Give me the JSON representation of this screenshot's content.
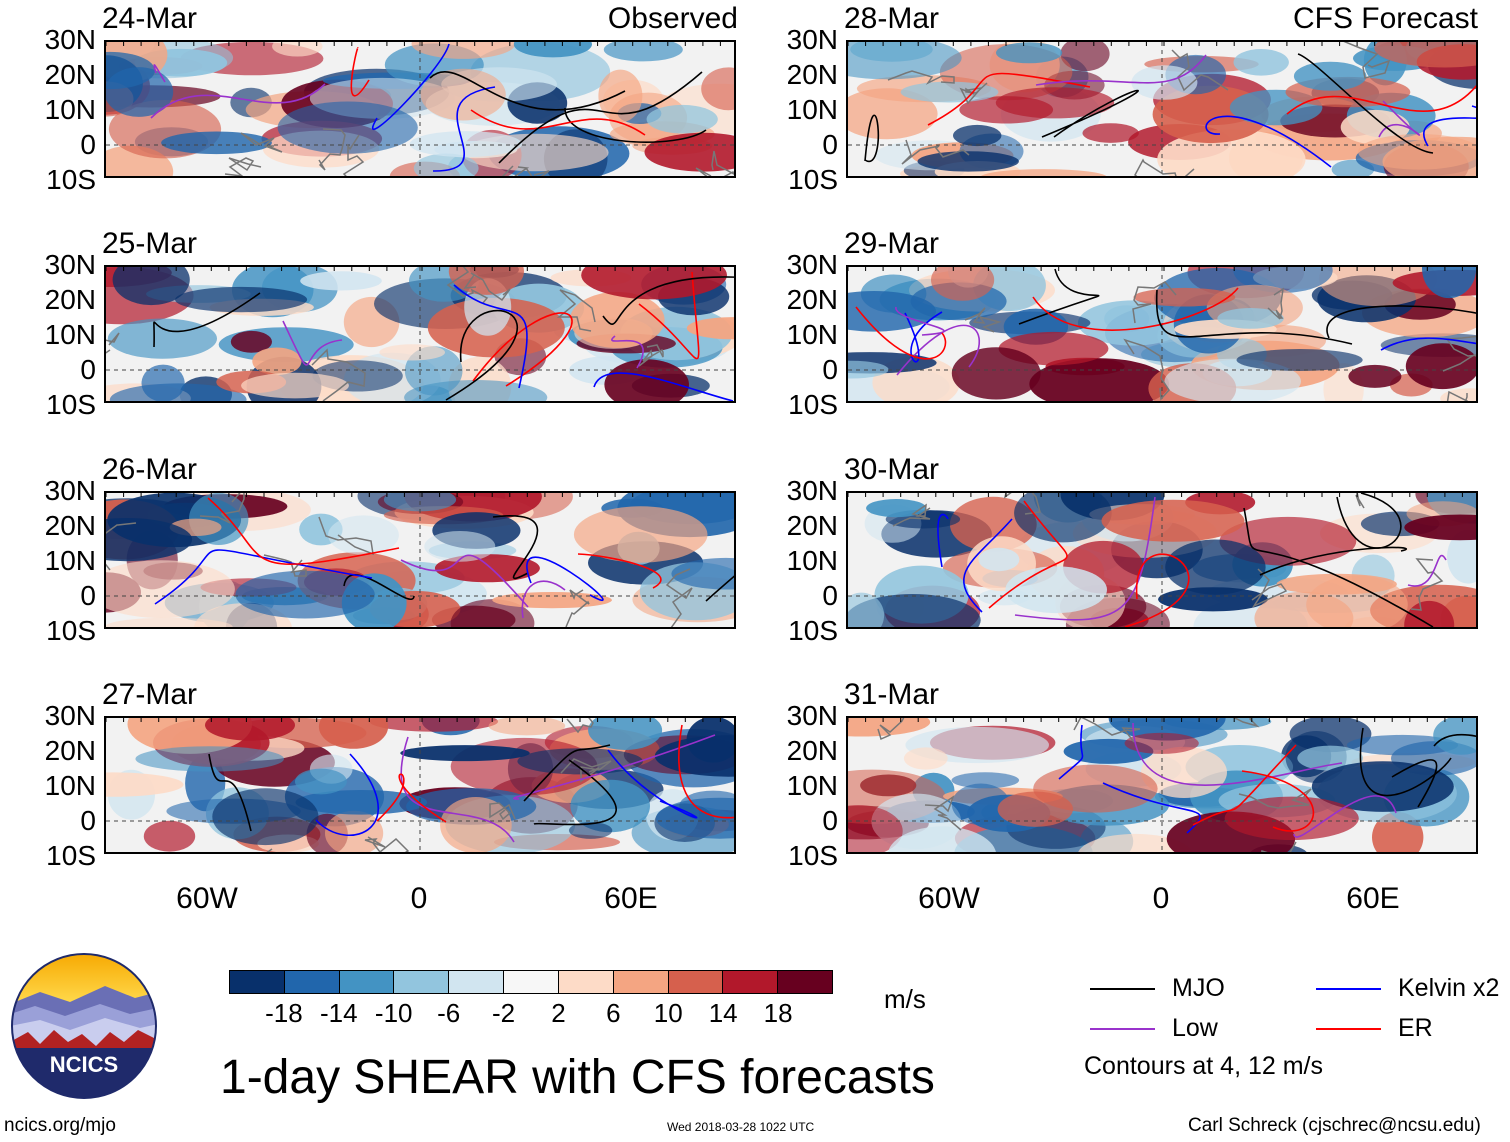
{
  "headers": {
    "observed": "Observed",
    "forecast": "CFS Forecast"
  },
  "panels": [
    {
      "date": "24-Mar",
      "column": "observed"
    },
    {
      "date": "25-Mar",
      "column": "observed"
    },
    {
      "date": "26-Mar",
      "column": "observed"
    },
    {
      "date": "27-Mar",
      "column": "observed"
    },
    {
      "date": "28-Mar",
      "column": "forecast"
    },
    {
      "date": "29-Mar",
      "column": "forecast"
    },
    {
      "date": "30-Mar",
      "column": "forecast"
    },
    {
      "date": "31-Mar",
      "column": "forecast"
    }
  ],
  "latitude_labels": [
    "30N",
    "20N",
    "10N",
    "0",
    "10S"
  ],
  "longitude_labels": [
    "60W",
    "0",
    "60E"
  ],
  "colorbar": {
    "unit": "m/s",
    "ticks": [
      "-18",
      "-14",
      "-10",
      "-6",
      "-2",
      "2",
      "6",
      "10",
      "14",
      "18"
    ],
    "colors": [
      "#08306b",
      "#2166ac",
      "#4393c3",
      "#92c5de",
      "#d1e5f0",
      "#f7f7f7",
      "#fddbc7",
      "#f4a582",
      "#d6604d",
      "#b2182b",
      "#67001f"
    ]
  },
  "legend": {
    "items": [
      {
        "label": "MJO",
        "color": "#000000"
      },
      {
        "label": "Kelvin x2",
        "color": "#0000ff"
      },
      {
        "label": "Low",
        "color": "#9932cc"
      },
      {
        "label": "ER",
        "color": "#ff0000"
      }
    ],
    "contour_note": "Contours at 4, 12 m/s"
  },
  "title": "1-day SHEAR with CFS forecasts",
  "logo_text": "NCICS",
  "footer": {
    "url": "ncics.org/mjo",
    "timestamp": "Wed 2018-03-28 1022 UTC",
    "credit": "Carl Schreck (cjschrec@ncsu.edu)"
  }
}
